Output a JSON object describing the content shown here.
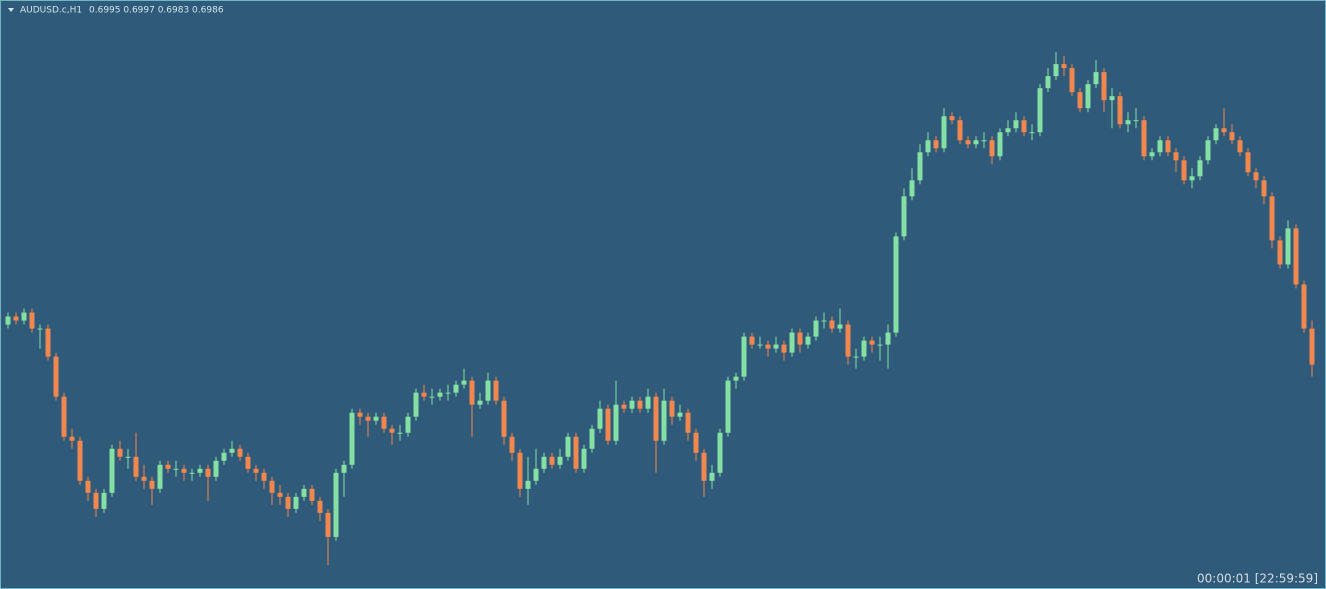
{
  "header": {
    "symbol": "AUDUSD.c,H1",
    "quote": "0.6995 0.6997 0.6983 0.6986"
  },
  "timer": "00:00:01 [22:59:59]",
  "chart_data": {
    "type": "candlestick",
    "ylim": [
      0.693,
      0.7077
    ],
    "up_color": "#86e0a4",
    "down_color": "#f0874e",
    "background": "#2f5a7a",
    "open": [
      0.6996,
      0.6998,
      0.6997,
      0.6999,
      0.6995,
      0.6995,
      0.6988,
      0.6978,
      0.6968,
      0.6967,
      0.6957,
      0.6954,
      0.695,
      0.6954,
      0.6965,
      0.6963,
      0.6963,
      0.6958,
      0.6957,
      0.6955,
      0.6961,
      0.696,
      0.696,
      0.6959,
      0.6959,
      0.696,
      0.6958,
      0.6962,
      0.6964,
      0.6965,
      0.6963,
      0.696,
      0.6959,
      0.6957,
      0.6954,
      0.6953,
      0.695,
      0.6953,
      0.6955,
      0.6952,
      0.6949,
      0.6943,
      0.6959,
      0.6961,
      0.6974,
      0.6973,
      0.6972,
      0.6973,
      0.697,
      0.6969,
      0.6969,
      0.6973,
      0.6979,
      0.6978,
      0.6978,
      0.6979,
      0.6979,
      0.6981,
      0.6982,
      0.6976,
      0.6977,
      0.6982,
      0.6977,
      0.6968,
      0.6964,
      0.6955,
      0.6957,
      0.696,
      0.6963,
      0.6961,
      0.6963,
      0.6968,
      0.696,
      0.6965,
      0.697,
      0.6975,
      0.6967,
      0.6976,
      0.6975,
      0.6977,
      0.6975,
      0.6978,
      0.6967,
      0.6977,
      0.6973,
      0.6974,
      0.6969,
      0.6964,
      0.6957,
      0.6959,
      0.6969,
      0.6982,
      0.6983,
      0.6993,
      0.6991,
      0.6991,
      0.699,
      0.6991,
      0.6989,
      0.6994,
      0.6991,
      0.6993,
      0.6997,
      0.6997,
      0.6995,
      0.6996,
      0.6988,
      0.6988,
      0.6992,
      0.6991,
      0.6991,
      0.6994,
      0.7018,
      0.7028,
      0.7032,
      0.7039,
      0.7042,
      0.704,
      0.7048,
      0.7047,
      0.7042,
      0.7041,
      0.7042,
      0.7042,
      0.7038,
      0.7044,
      0.7045,
      0.7047,
      0.7044,
      0.7044,
      0.7055,
      0.7058,
      0.7061,
      0.706,
      0.7054,
      0.705,
      0.7056,
      0.7059,
      0.7052,
      0.7053,
      0.7046,
      0.7047,
      0.7047,
      0.7038,
      0.7039,
      0.7042,
      0.7039,
      0.7037,
      0.7032,
      0.7033,
      0.7037,
      0.7042,
      0.7045,
      0.7044,
      0.7042,
      0.7039,
      0.7034,
      0.7032,
      0.7028,
      0.7017,
      0.7011,
      0.702,
      0.7006,
      0.6995
    ],
    "high": [
      0.6999,
      0.6999,
      0.7,
      0.7,
      0.6996,
      0.6996,
      0.6989,
      0.6979,
      0.697,
      0.6968,
      0.6958,
      0.6955,
      0.6955,
      0.6966,
      0.6967,
      0.6965,
      0.6969,
      0.6961,
      0.6958,
      0.6962,
      0.6962,
      0.6962,
      0.6961,
      0.696,
      0.6961,
      0.6961,
      0.6963,
      0.6965,
      0.6967,
      0.6966,
      0.6964,
      0.6961,
      0.696,
      0.6958,
      0.6956,
      0.6954,
      0.6954,
      0.6956,
      0.6956,
      0.6953,
      0.695,
      0.696,
      0.6962,
      0.6975,
      0.6975,
      0.6974,
      0.6974,
      0.6974,
      0.6971,
      0.6971,
      0.6974,
      0.698,
      0.6981,
      0.698,
      0.698,
      0.6981,
      0.6982,
      0.6985,
      0.6983,
      0.6979,
      0.6984,
      0.6983,
      0.6978,
      0.6969,
      0.6965,
      0.6963,
      0.6965,
      0.6964,
      0.6964,
      0.6965,
      0.6969,
      0.6969,
      0.6966,
      0.6971,
      0.6977,
      0.6976,
      0.6982,
      0.6977,
      0.6978,
      0.6978,
      0.698,
      0.6979,
      0.698,
      0.6978,
      0.6976,
      0.6975,
      0.697,
      0.6965,
      0.6961,
      0.697,
      0.6983,
      0.6984,
      0.6994,
      0.6994,
      0.6993,
      0.6992,
      0.6993,
      0.6992,
      0.6995,
      0.6995,
      0.6994,
      0.6998,
      0.6999,
      0.6998,
      0.7,
      0.6997,
      0.699,
      0.6993,
      0.6993,
      0.6993,
      0.6996,
      0.7019,
      0.703,
      0.7035,
      0.7041,
      0.7044,
      0.7043,
      0.705,
      0.7049,
      0.7048,
      0.7043,
      0.7043,
      0.7044,
      0.7043,
      0.7045,
      0.7047,
      0.7049,
      0.7048,
      0.7046,
      0.7056,
      0.706,
      0.7064,
      0.7063,
      0.7061,
      0.7055,
      0.7057,
      0.7062,
      0.706,
      0.7055,
      0.7054,
      0.7049,
      0.705,
      0.7048,
      0.704,
      0.7043,
      0.7043,
      0.704,
      0.7038,
      0.7035,
      0.7038,
      0.7043,
      0.7046,
      0.705,
      0.7046,
      0.7043,
      0.704,
      0.7035,
      0.7033,
      0.7029,
      0.7018,
      0.7022,
      0.7021,
      0.7007,
      0.6997
    ],
    "low": [
      0.6995,
      0.6996,
      0.6996,
      0.6994,
      0.699,
      0.6987,
      0.6977,
      0.6967,
      0.6965,
      0.6956,
      0.6952,
      0.6948,
      0.6949,
      0.6953,
      0.6962,
      0.696,
      0.6957,
      0.6955,
      0.6951,
      0.6954,
      0.6959,
      0.6958,
      0.6957,
      0.6957,
      0.6958,
      0.6952,
      0.6957,
      0.6961,
      0.6963,
      0.6962,
      0.6959,
      0.6957,
      0.6955,
      0.6951,
      0.6951,
      0.6948,
      0.6949,
      0.6952,
      0.6951,
      0.6947,
      0.6936,
      0.6942,
      0.6953,
      0.696,
      0.6971,
      0.6968,
      0.6971,
      0.6969,
      0.6966,
      0.6967,
      0.6968,
      0.6972,
      0.6977,
      0.6976,
      0.6977,
      0.6977,
      0.6978,
      0.698,
      0.6968,
      0.6975,
      0.6976,
      0.6976,
      0.6966,
      0.6962,
      0.6953,
      0.6951,
      0.6956,
      0.6959,
      0.696,
      0.696,
      0.6962,
      0.6959,
      0.6959,
      0.6964,
      0.6969,
      0.6966,
      0.6966,
      0.6974,
      0.6974,
      0.6974,
      0.6974,
      0.6959,
      0.6966,
      0.6971,
      0.6972,
      0.6967,
      0.6962,
      0.6953,
      0.6955,
      0.6958,
      0.6968,
      0.698,
      0.6982,
      0.699,
      0.699,
      0.6988,
      0.6989,
      0.6987,
      0.6988,
      0.6989,
      0.699,
      0.6992,
      0.6995,
      0.6994,
      0.6994,
      0.6986,
      0.6985,
      0.6987,
      0.6989,
      0.6987,
      0.6985,
      0.6993,
      0.7017,
      0.7027,
      0.7031,
      0.7038,
      0.7039,
      0.7039,
      0.7046,
      0.7041,
      0.704,
      0.704,
      0.704,
      0.7036,
      0.7037,
      0.7043,
      0.7044,
      0.7043,
      0.7042,
      0.7043,
      0.7054,
      0.7057,
      0.7058,
      0.7053,
      0.7049,
      0.7049,
      0.7055,
      0.7049,
      0.7045,
      0.7045,
      0.7044,
      0.7045,
      0.7037,
      0.7037,
      0.7038,
      0.7038,
      0.7034,
      0.7031,
      0.703,
      0.7032,
      0.7036,
      0.7041,
      0.7043,
      0.7041,
      0.7038,
      0.7033,
      0.703,
      0.7026,
      0.7015,
      0.701,
      0.701,
      0.7005,
      0.6994,
      0.6983
    ],
    "close": [
      0.6998,
      0.6997,
      0.6999,
      0.6995,
      0.6995,
      0.6988,
      0.6978,
      0.6968,
      0.6967,
      0.6957,
      0.6954,
      0.695,
      0.6954,
      0.6965,
      0.6963,
      0.6963,
      0.6958,
      0.6957,
      0.6955,
      0.6961,
      0.696,
      0.696,
      0.6959,
      0.6959,
      0.696,
      0.6958,
      0.6962,
      0.6964,
      0.6965,
      0.6963,
      0.696,
      0.6959,
      0.6957,
      0.6954,
      0.6953,
      0.695,
      0.6953,
      0.6955,
      0.6952,
      0.6949,
      0.6943,
      0.6959,
      0.6961,
      0.6974,
      0.6973,
      0.6972,
      0.6973,
      0.697,
      0.6969,
      0.6969,
      0.6973,
      0.6979,
      0.6978,
      0.6978,
      0.6979,
      0.6979,
      0.6981,
      0.6982,
      0.6976,
      0.6977,
      0.6982,
      0.6977,
      0.6968,
      0.6964,
      0.6955,
      0.6957,
      0.696,
      0.6963,
      0.6961,
      0.6963,
      0.6968,
      0.696,
      0.6965,
      0.697,
      0.6975,
      0.6967,
      0.6976,
      0.6975,
      0.6977,
      0.6975,
      0.6978,
      0.6967,
      0.6977,
      0.6973,
      0.6974,
      0.6969,
      0.6964,
      0.6957,
      0.6959,
      0.6969,
      0.6982,
      0.6983,
      0.6993,
      0.6991,
      0.6991,
      0.699,
      0.6991,
      0.6989,
      0.6994,
      0.6991,
      0.6993,
      0.6997,
      0.6997,
      0.6995,
      0.6996,
      0.6988,
      0.6988,
      0.6992,
      0.6991,
      0.6991,
      0.6994,
      0.7018,
      0.7028,
      0.7032,
      0.7039,
      0.7042,
      0.704,
      0.7048,
      0.7047,
      0.7042,
      0.7041,
      0.7042,
      0.7042,
      0.7038,
      0.7044,
      0.7045,
      0.7047,
      0.7044,
      0.7044,
      0.7055,
      0.7058,
      0.7061,
      0.706,
      0.7054,
      0.705,
      0.7056,
      0.7059,
      0.7052,
      0.7053,
      0.7046,
      0.7047,
      0.7047,
      0.7038,
      0.7039,
      0.7042,
      0.7039,
      0.7037,
      0.7032,
      0.7033,
      0.7037,
      0.7042,
      0.7045,
      0.7044,
      0.7042,
      0.7039,
      0.7034,
      0.7032,
      0.7028,
      0.7017,
      0.7011,
      0.702,
      0.7006,
      0.6995,
      0.6986
    ]
  }
}
